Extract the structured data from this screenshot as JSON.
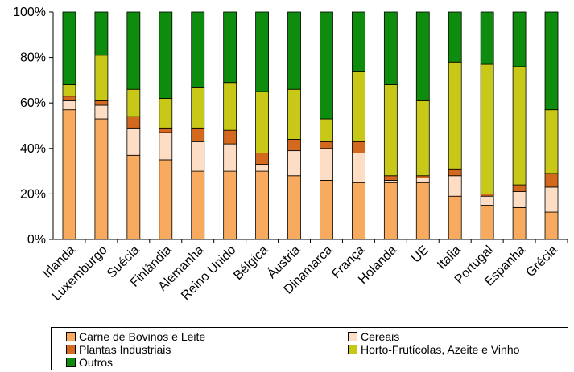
{
  "chart_data": {
    "type": "bar",
    "stacked": true,
    "percent": true,
    "title": "",
    "xlabel": "",
    "ylabel": "",
    "ylim": [
      0,
      100
    ],
    "yticks": [
      "0%",
      "20%",
      "40%",
      "60%",
      "80%",
      "100%"
    ],
    "legend_position": "bottom",
    "grid": false,
    "categories": [
      "Irlanda",
      "Luxemburgo",
      "Suécia",
      "Finlândia",
      "Alemanha",
      "Reino Unido",
      "Bélgica",
      "Áustria",
      "Dinamarca",
      "França",
      "Holanda",
      "UE",
      "Itália",
      "Portugal",
      "Espanha",
      "Grécia"
    ],
    "series": [
      {
        "name": "Carne de Bovinos e Leite",
        "color": "#F8AA5E",
        "values": [
          57,
          53,
          37,
          35,
          30,
          30,
          30,
          28,
          26,
          25,
          25,
          25,
          19,
          15,
          14,
          12
        ]
      },
      {
        "name": "Cereais",
        "color": "#FDDDC4",
        "values": [
          4,
          6,
          12,
          12,
          13,
          12,
          3,
          11,
          14,
          13,
          1,
          2,
          9,
          4,
          7,
          11
        ]
      },
      {
        "name": "Plantas Industriais",
        "color": "#D2691E",
        "values": [
          2,
          2,
          5,
          2,
          6,
          6,
          5,
          5,
          3,
          5,
          2,
          1,
          3,
          1,
          3,
          6
        ]
      },
      {
        "name": "Horto-Frutícolas, Azeite e Vinho",
        "color": "#C8C819",
        "values": [
          5,
          20,
          12,
          13,
          18,
          21,
          27,
          22,
          10,
          31,
          40,
          33,
          47,
          57,
          52,
          28
        ]
      },
      {
        "name": "Outros",
        "color": "#0E8C0E",
        "values": [
          32,
          19,
          34,
          38,
          33,
          31,
          35,
          34,
          47,
          26,
          32,
          39,
          22,
          23,
          24,
          43
        ]
      }
    ]
  }
}
